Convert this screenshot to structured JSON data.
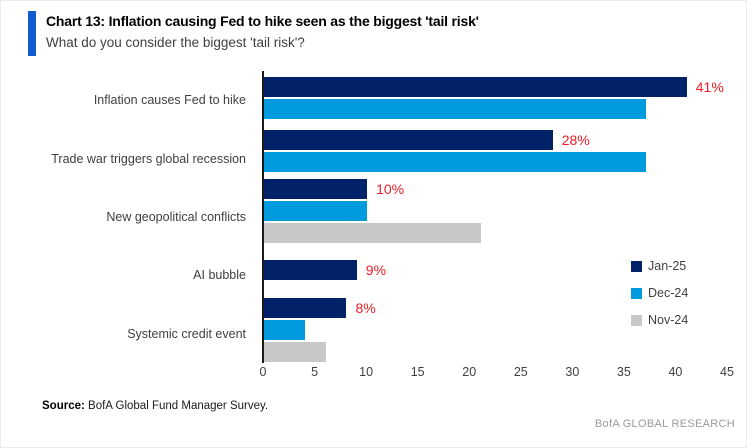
{
  "header": {
    "title": "Chart 13: Inflation causing Fed to hike seen as the biggest 'tail risk'",
    "subtitle": "What do you consider the biggest 'tail risk'?"
  },
  "footer": {
    "source_label": "Source:",
    "source_text": " BofA Global Fund Manager Survey.",
    "brand": "BofA GLOBAL RESEARCH"
  },
  "colors": {
    "accent_bar": "#0f5bd0",
    "jan_25": "#012169",
    "dec_24": "#009ade",
    "nov_24": "#c8c8c8",
    "data_label_red": "#ed1c24"
  },
  "chart_data": {
    "type": "bar",
    "orientation": "horizontal",
    "title": "Chart 13: Inflation causing Fed to hike seen as the biggest 'tail risk'",
    "subtitle": "What do you consider the biggest 'tail risk'?",
    "categories": [
      "Inflation causes Fed to hike",
      "Trade war triggers global recession",
      "New geopolitical conflicts",
      "AI bubble",
      "Systemic credit event"
    ],
    "series": [
      {
        "name": "Jan-25",
        "color": "#012169",
        "values": [
          41,
          28,
          10,
          9,
          8
        ],
        "labels": [
          "41%",
          "28%",
          "10%",
          "9%",
          "8%"
        ]
      },
      {
        "name": "Dec-24",
        "color": "#009ade",
        "values": [
          37,
          37,
          10,
          null,
          4
        ]
      },
      {
        "name": "Nov-24",
        "color": "#c8c8c8",
        "values": [
          null,
          null,
          21,
          null,
          6
        ]
      }
    ],
    "xlim": [
      0,
      45
    ],
    "x_ticks": [
      0,
      5,
      10,
      15,
      20,
      25,
      30,
      35,
      40,
      45
    ],
    "legend_position": "right",
    "grid": false,
    "data_label_color": "#ed1c24"
  }
}
